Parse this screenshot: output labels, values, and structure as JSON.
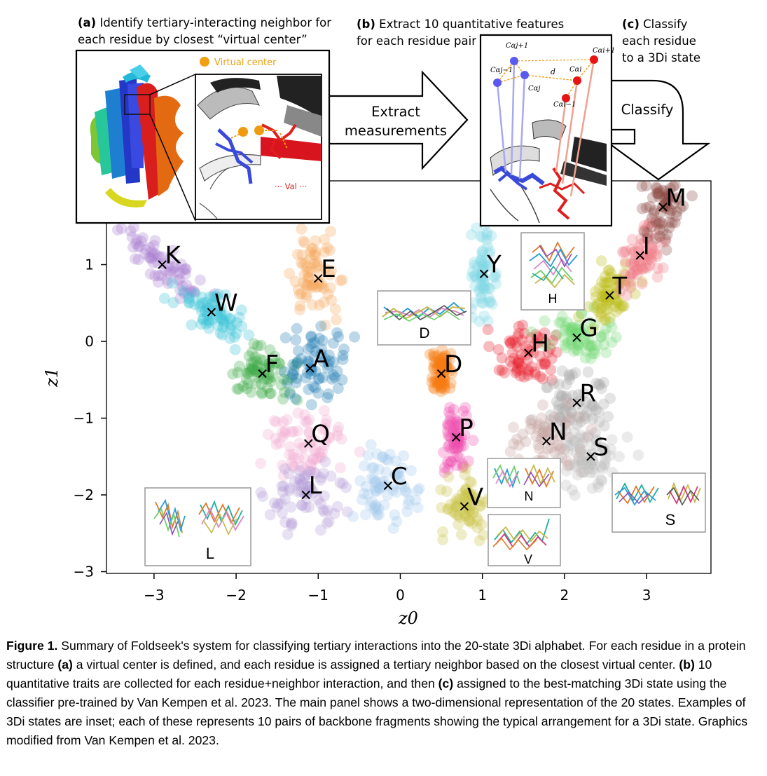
{
  "panel_a": {
    "heading_label": "(a)",
    "heading_line1": "Identify tertiary-interacting neighbor for",
    "heading_line2": "each residue by closest “virtual center”",
    "legend_virtual_center": "Virtual center",
    "val_label": "··· Val ···"
  },
  "panel_b": {
    "heading_label": "(b)",
    "heading_line1": "Extract 10 quantitative features",
    "heading_line2": "for each residue pair",
    "arrow_line1": "Extract",
    "arrow_line2": "measurements",
    "labels": {
      "ca_j_plus1": "Cαj+1",
      "ca_j_minus1": "Cαj−1",
      "ca_j": "Cαj",
      "d": "d",
      "ca_i": "Cαi",
      "ca_i_plus1": "Cαi+1",
      "ca_i_minus1": "Cαi−1"
    }
  },
  "panel_c": {
    "heading_label": "(c)",
    "heading_line1": "Classify",
    "heading_line2": "each residue",
    "heading_line3": "to a 3Di state",
    "arrow_label": "Classify"
  },
  "chart_data": {
    "type": "scatter",
    "xlabel": "z0",
    "ylabel": "z1",
    "xlim": [
      -3.6,
      3.8
    ],
    "ylim": [
      -3.0,
      1.6
    ],
    "x_ticks": [
      -3,
      -2,
      -1,
      0,
      1,
      2,
      3
    ],
    "y_ticks": [
      -3,
      -2,
      -1,
      0,
      1
    ],
    "x_tick_labels": [
      "−3",
      "−2",
      "−1",
      "0",
      "1",
      "2",
      "3"
    ],
    "y_tick_labels": [
      "−3",
      "−2",
      "−1",
      "0",
      "1"
    ],
    "grid": false,
    "states": [
      {
        "label": "K",
        "x": -2.9,
        "y": 1.0,
        "color": "#a87fd2"
      },
      {
        "label": "W",
        "x": -2.3,
        "y": 0.38,
        "color": "#38c4d6"
      },
      {
        "label": "E",
        "x": -1.0,
        "y": 0.82,
        "color": "#f5a55a"
      },
      {
        "label": "F",
        "x": -1.68,
        "y": -0.42,
        "color": "#3aaa45"
      },
      {
        "label": "A",
        "x": -1.1,
        "y": -0.35,
        "color": "#1f7ab4"
      },
      {
        "label": "Q",
        "x": -1.12,
        "y": -1.33,
        "color": "#f3a9cf"
      },
      {
        "label": "L",
        "x": -1.15,
        "y": -2.0,
        "color": "#b39ad6"
      },
      {
        "label": "C",
        "x": -0.15,
        "y": -1.88,
        "color": "#9ec6ea"
      },
      {
        "label": "D",
        "x": 0.5,
        "y": -0.42,
        "color": "#f47a10"
      },
      {
        "label": "P",
        "x": 0.68,
        "y": -1.25,
        "color": "#ef4fb0"
      },
      {
        "label": "V",
        "x": 0.78,
        "y": -2.15,
        "color": "#c9c44a"
      },
      {
        "label": "Y",
        "x": 1.02,
        "y": 0.88,
        "color": "#7fd6e6"
      },
      {
        "label": "H",
        "x": 1.56,
        "y": -0.15,
        "color": "#e8202f"
      },
      {
        "label": "G",
        "x": 2.15,
        "y": 0.05,
        "color": "#6fd86f"
      },
      {
        "label": "T",
        "x": 2.55,
        "y": 0.6,
        "color": "#bdbd1a"
      },
      {
        "label": "I",
        "x": 2.92,
        "y": 1.12,
        "color": "#f07a86"
      },
      {
        "label": "M",
        "x": 3.2,
        "y": 1.75,
        "color": "#8a4a42"
      },
      {
        "label": "R",
        "x": 2.15,
        "y": -0.8,
        "color": "#a7a7a7"
      },
      {
        "label": "N",
        "x": 1.78,
        "y": -1.3,
        "color": "#c4a09a"
      },
      {
        "label": "S",
        "x": 2.32,
        "y": -1.5,
        "color": "#bdbdbd"
      }
    ],
    "insets": [
      "D",
      "H",
      "N",
      "V",
      "L",
      "S"
    ]
  },
  "caption": {
    "figure_label": "Figure 1.",
    "text_1": " Summary of Foldseek's system for classifying tertiary interactions into the 20-state 3Di alphabet. For each residue in a protein structure ",
    "part_a": "(a)",
    "text_2": " a virtual center is defined, and each residue is assigned a tertiary neighbor based on the closest virtual center. ",
    "part_b": "(b)",
    "text_3": " 10 quantitative traits are collected for each residue+neighbor interaction, and then ",
    "part_c": "(c)",
    "text_4": " assigned to the best-matching 3Di state using the classifier pre-trained by Van Kempen et al. 2023. The main panel shows a two-dimensional representation of the 20 states. Examples of 3Di states are inset; each of these represents 10 pairs of backbone fragments showing the typical arrangement for a 3Di state. Graphics modified from Van Kempen et al. 2023."
  }
}
